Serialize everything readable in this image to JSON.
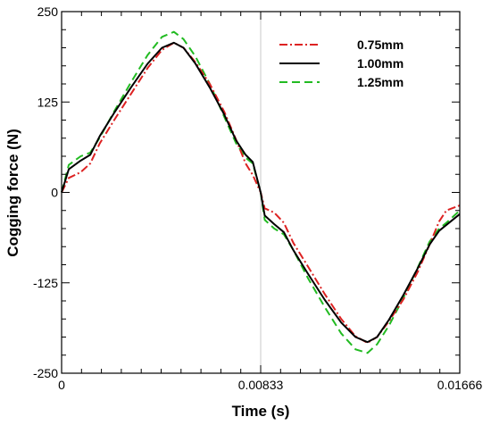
{
  "chart_data": {
    "type": "line",
    "xlabel": "Time (s)",
    "ylabel": "Cogging force (N)",
    "xlim": [
      0,
      0.01666
    ],
    "ylim": [
      -250,
      250
    ],
    "xticks": [
      {
        "value": 0,
        "label": "0"
      },
      {
        "value": 0.00833,
        "label": "0.00833"
      },
      {
        "value": 0.01666,
        "label": "0.01666"
      }
    ],
    "yticks": [
      {
        "value": 250,
        "label": "250"
      },
      {
        "value": 125,
        "label": "125"
      },
      {
        "value": 0,
        "label": "0"
      },
      {
        "value": -125,
        "label": "-125"
      },
      {
        "value": -250,
        "label": "-250"
      }
    ],
    "grid": false,
    "legend_position": "top-right",
    "series": [
      {
        "name": "0.75mm",
        "color": "#dd2222",
        "dash": "dashdot",
        "points": [
          [
            0,
            0
          ],
          [
            0.0003,
            20
          ],
          [
            0.0008,
            28
          ],
          [
            0.0012,
            40
          ],
          [
            0.0016,
            68
          ],
          [
            0.0022,
            100
          ],
          [
            0.0029,
            136
          ],
          [
            0.0036,
            172
          ],
          [
            0.0042,
            197
          ],
          [
            0.0047,
            207
          ],
          [
            0.0051,
            200
          ],
          [
            0.0056,
            180
          ],
          [
            0.0062,
            150
          ],
          [
            0.0068,
            112
          ],
          [
            0.0073,
            73
          ],
          [
            0.0077,
            40
          ],
          [
            0.008,
            24
          ],
          [
            0.00833,
            0
          ],
          [
            0.0085,
            -22
          ],
          [
            0.0089,
            -28
          ],
          [
            0.0093,
            -42
          ],
          [
            0.0097,
            -70
          ],
          [
            0.0103,
            -102
          ],
          [
            0.011,
            -140
          ],
          [
            0.0117,
            -175
          ],
          [
            0.0123,
            -199
          ],
          [
            0.0128,
            -208
          ],
          [
            0.0132,
            -200
          ],
          [
            0.0137,
            -178
          ],
          [
            0.0143,
            -148
          ],
          [
            0.0149,
            -110
          ],
          [
            0.0154,
            -72
          ],
          [
            0.0158,
            -40
          ],
          [
            0.0161,
            -25
          ],
          [
            0.01666,
            -18
          ]
        ]
      },
      {
        "name": "1.00mm",
        "color": "#000000",
        "dash": "solid",
        "points": [
          [
            0,
            0
          ],
          [
            0.0003,
            32
          ],
          [
            0.0008,
            44
          ],
          [
            0.0012,
            52
          ],
          [
            0.0016,
            78
          ],
          [
            0.0022,
            110
          ],
          [
            0.0029,
            145
          ],
          [
            0.0036,
            178
          ],
          [
            0.0042,
            200
          ],
          [
            0.0047,
            207
          ],
          [
            0.0051,
            200
          ],
          [
            0.0056,
            178
          ],
          [
            0.0062,
            145
          ],
          [
            0.0068,
            108
          ],
          [
            0.0073,
            72
          ],
          [
            0.0077,
            52
          ],
          [
            0.008,
            42
          ],
          [
            0.00833,
            0
          ],
          [
            0.0085,
            -32
          ],
          [
            0.0089,
            -44
          ],
          [
            0.0093,
            -55
          ],
          [
            0.0097,
            -80
          ],
          [
            0.0103,
            -112
          ],
          [
            0.011,
            -148
          ],
          [
            0.0117,
            -180
          ],
          [
            0.0123,
            -200
          ],
          [
            0.0128,
            -207
          ],
          [
            0.0132,
            -200
          ],
          [
            0.0137,
            -176
          ],
          [
            0.0143,
            -142
          ],
          [
            0.0149,
            -105
          ],
          [
            0.0154,
            -72
          ],
          [
            0.0158,
            -53
          ],
          [
            0.0161,
            -45
          ],
          [
            0.01666,
            -30
          ]
        ]
      },
      {
        "name": "1.25mm",
        "color": "#22bb22",
        "dash": "dashed",
        "points": [
          [
            0,
            0
          ],
          [
            0.0003,
            38
          ],
          [
            0.0008,
            50
          ],
          [
            0.0012,
            55
          ],
          [
            0.0016,
            76
          ],
          [
            0.0022,
            112
          ],
          [
            0.0029,
            152
          ],
          [
            0.0036,
            190
          ],
          [
            0.0042,
            215
          ],
          [
            0.0047,
            222
          ],
          [
            0.0051,
            212
          ],
          [
            0.0056,
            188
          ],
          [
            0.0062,
            150
          ],
          [
            0.0068,
            105
          ],
          [
            0.0073,
            68
          ],
          [
            0.0077,
            48
          ],
          [
            0.008,
            40
          ],
          [
            0.00833,
            0
          ],
          [
            0.0085,
            -38
          ],
          [
            0.0089,
            -50
          ],
          [
            0.0093,
            -58
          ],
          [
            0.0097,
            -80
          ],
          [
            0.0103,
            -118
          ],
          [
            0.011,
            -158
          ],
          [
            0.0117,
            -195
          ],
          [
            0.0123,
            -217
          ],
          [
            0.0128,
            -222
          ],
          [
            0.0132,
            -210
          ],
          [
            0.0137,
            -184
          ],
          [
            0.0143,
            -146
          ],
          [
            0.0149,
            -104
          ],
          [
            0.0154,
            -68
          ],
          [
            0.0158,
            -50
          ],
          [
            0.0161,
            -42
          ],
          [
            0.01666,
            -25
          ]
        ]
      }
    ]
  }
}
